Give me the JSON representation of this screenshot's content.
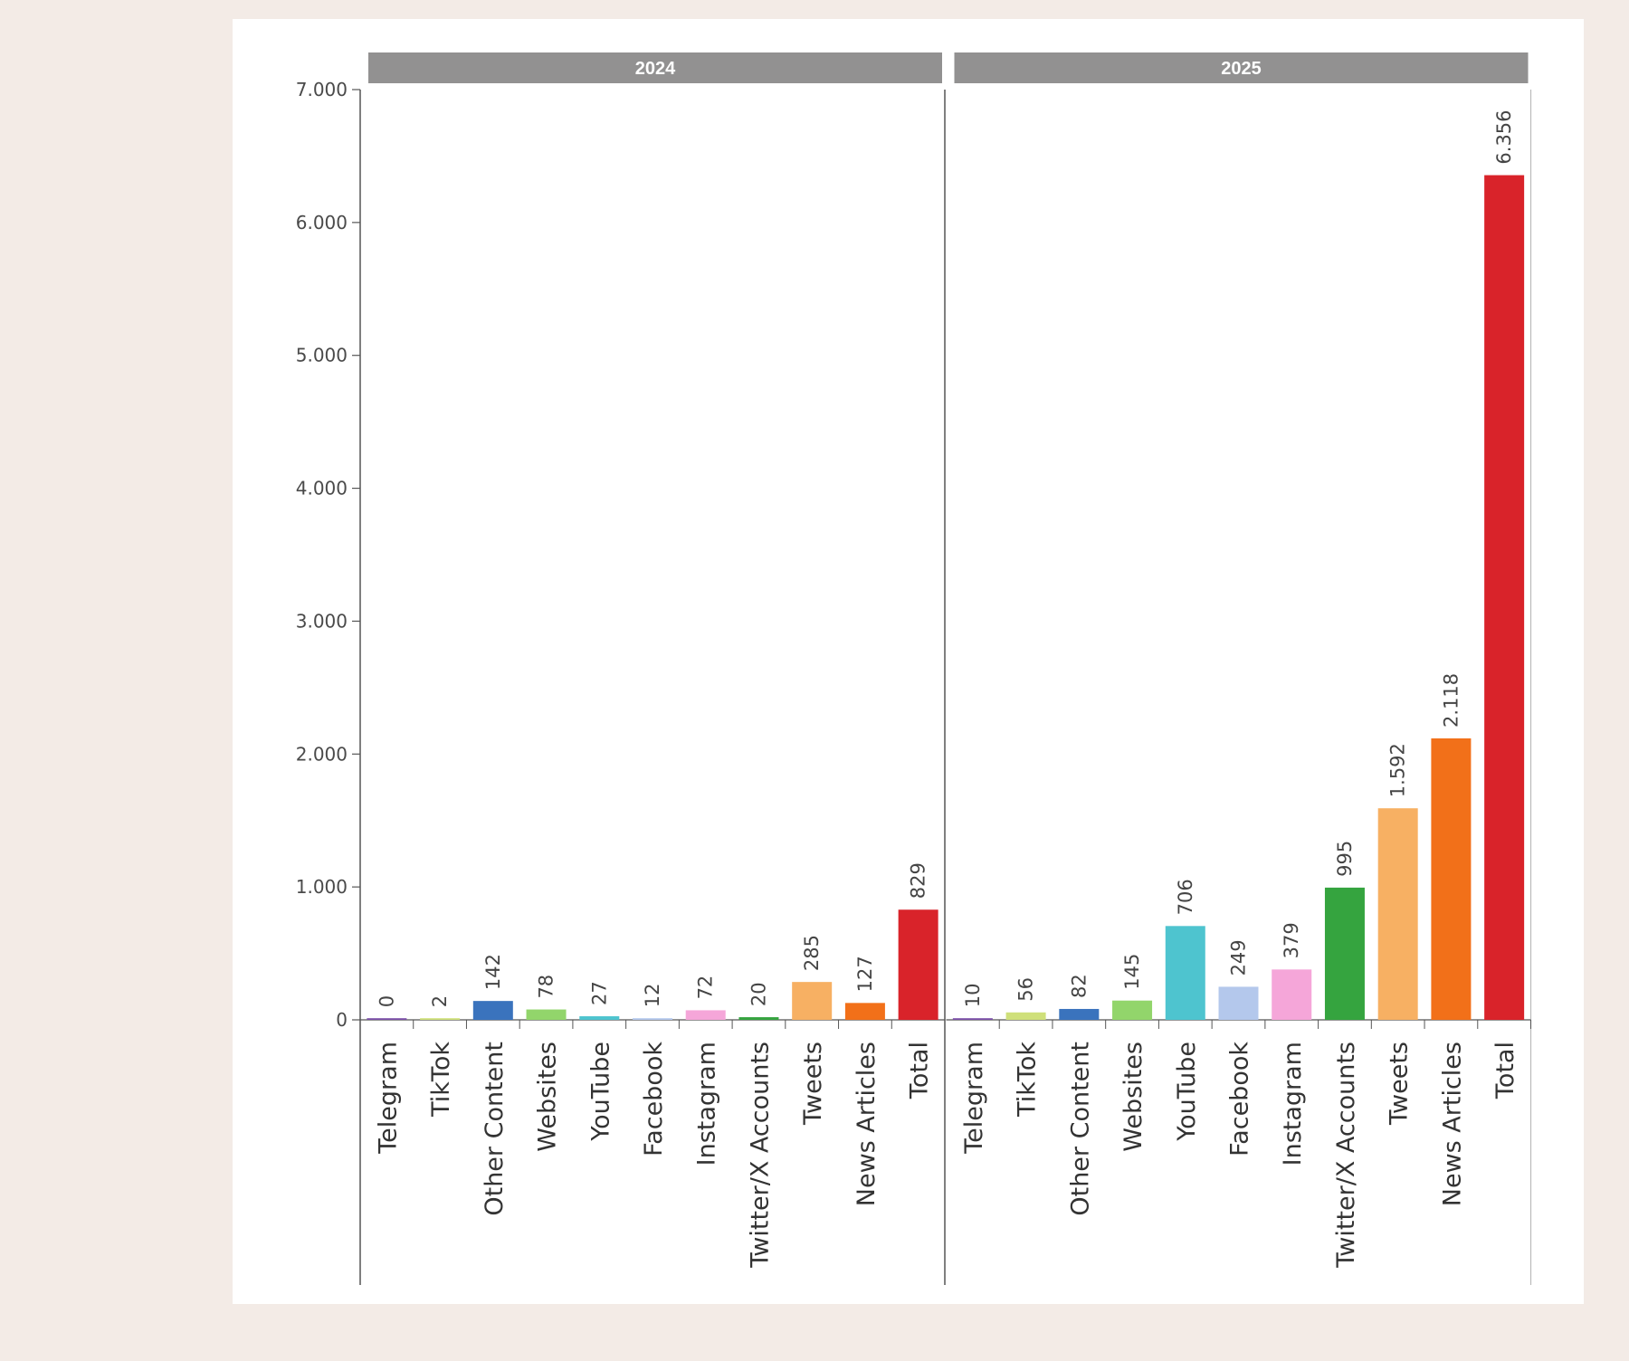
{
  "chart_data": {
    "type": "bar",
    "categories": [
      "Telegram",
      "TikTok",
      "Other Content",
      "Websites",
      "YouTube",
      "Facebook",
      "Instagram",
      "Twitter/X Accounts",
      "Tweets",
      "News Articles",
      "Total"
    ],
    "panels": [
      {
        "label": "2024",
        "values": [
          0,
          2,
          142,
          78,
          27,
          12,
          72,
          20,
          285,
          127,
          829
        ],
        "value_labels": [
          "0",
          "2",
          "142",
          "78",
          "27",
          "12",
          "72",
          "20",
          "285",
          "127",
          "829"
        ]
      },
      {
        "label": "2025",
        "values": [
          10,
          56,
          82,
          145,
          706,
          249,
          379,
          995,
          1592,
          2118,
          6356
        ],
        "value_labels": [
          "10",
          "56",
          "82",
          "145",
          "706",
          "249",
          "379",
          "995",
          "1.592",
          "2.118",
          "6.356"
        ]
      }
    ],
    "colors": [
      "#7b4fa8",
      "#cfe07a",
      "#3a73bd",
      "#92d56b",
      "#4ec4cf",
      "#b4c8ec",
      "#f5a6d9",
      "#35a43f",
      "#f7b063",
      "#f27019",
      "#d9232a"
    ],
    "ylim": [
      0,
      7000
    ],
    "yticks": [
      0,
      1000,
      2000,
      3000,
      4000,
      5000,
      6000,
      7000
    ],
    "ytick_labels": [
      "0",
      "1.000",
      "2.000",
      "3.000",
      "4.000",
      "5.000",
      "6.000",
      "7.000"
    ],
    "grid": false,
    "legend": "none"
  }
}
